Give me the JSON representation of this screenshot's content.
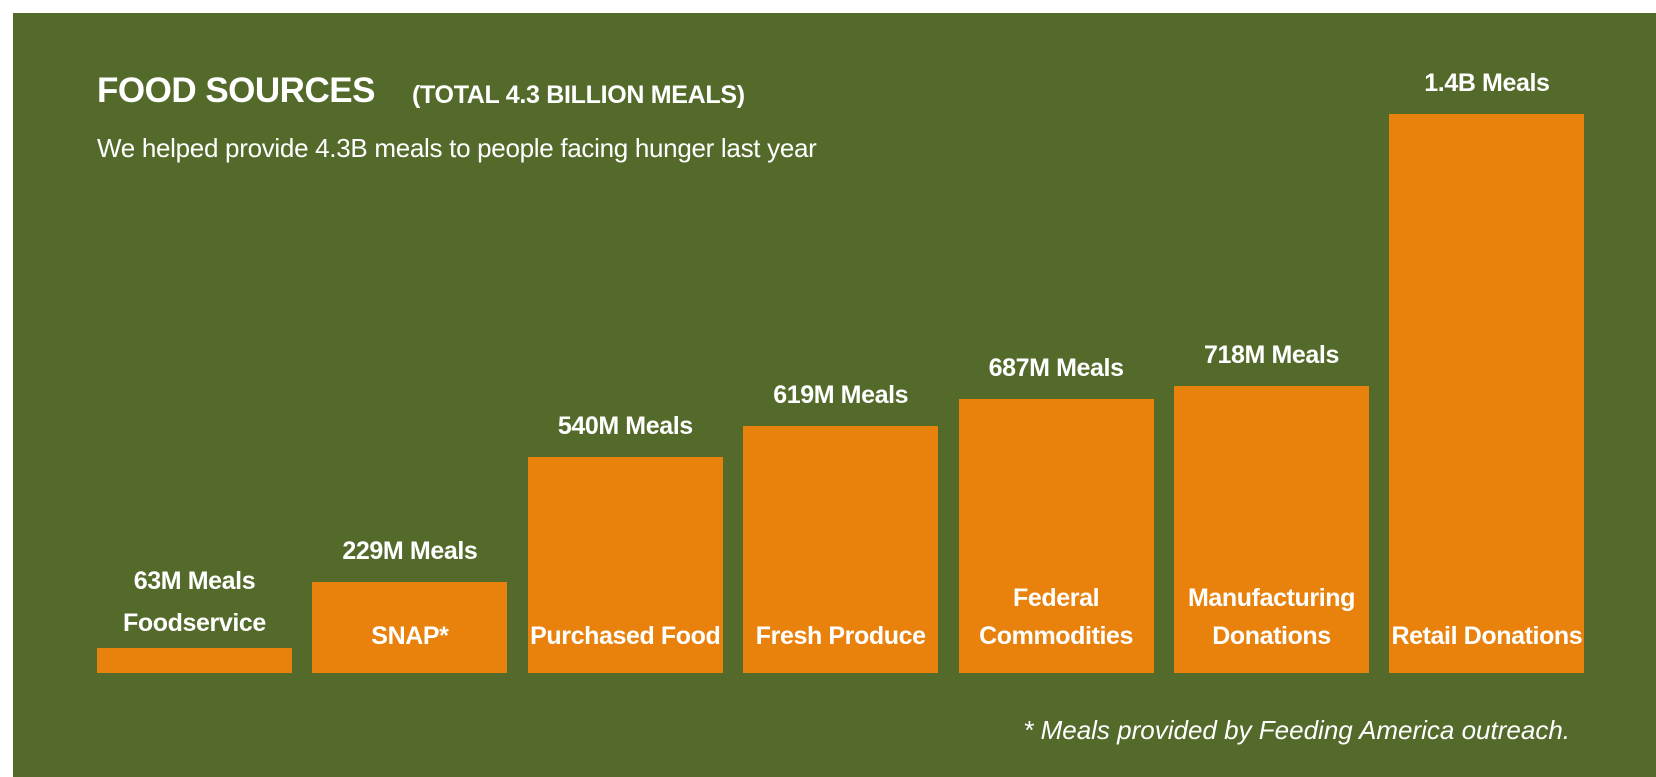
{
  "chart_data": {
    "type": "bar",
    "title": "FOOD SOURCES",
    "title_note": "(TOTAL 4.3 BILLION MEALS)",
    "subtitle": "We helped provide 4.3B meals to people facing hunger last year",
    "categories": [
      "Foodservice",
      "SNAP*",
      "Purchased Food",
      "Fresh Produce",
      "Federal Commodities",
      "Manufacturing Donations",
      "Retail Donations"
    ],
    "values": [
      63,
      229,
      540,
      619,
      687,
      718,
      1400
    ],
    "value_labels": [
      "63M Meals",
      "229M Meals",
      "540M Meals",
      "619M Meals",
      "687M Meals",
      "718M Meals",
      "1.4B Meals"
    ],
    "color": "#e8820c",
    "footnote": "* Meals provided by Feeding America outreach."
  }
}
